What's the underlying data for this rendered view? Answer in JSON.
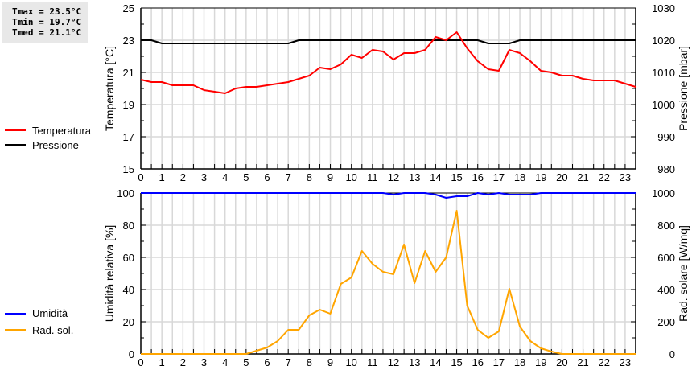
{
  "stats": {
    "tmax": "Tmax = 23.5°C",
    "tmin": "Tmin = 19.7°C",
    "tmed": "Tmed = 21.1°C"
  },
  "legend_top": [
    {
      "label": "Temperatura",
      "color": "#ff0000"
    },
    {
      "label": "Pressione",
      "color": "#000000"
    }
  ],
  "legend_bottom": [
    {
      "label": "Umidità",
      "color": "#0000ff"
    },
    {
      "label": "Rad. sol.",
      "color": "#ffa500"
    }
  ],
  "chart_data": [
    {
      "type": "line",
      "title": "",
      "xlabel": "",
      "x_ticks": [
        "0",
        "1",
        "2",
        "3",
        "4",
        "5",
        "6",
        "7",
        "8",
        "9",
        "10",
        "11",
        "12",
        "13",
        "14",
        "15",
        "16",
        "17",
        "18",
        "19",
        "20",
        "21",
        "22",
        "23"
      ],
      "ylabel_left": "Temperatura [°C]",
      "ylabel_right": "Pressione [mbar]",
      "ylim_left": [
        15,
        25
      ],
      "ylim_right": [
        980,
        1030
      ],
      "yticks_left": [
        "15",
        "17",
        "19",
        "21",
        "23",
        "25"
      ],
      "yticks_right": [
        "980",
        "990",
        "1000",
        "1010",
        "1020",
        "1030"
      ],
      "grid": true,
      "legend_position": "left",
      "x": [
        0,
        0.5,
        1,
        1.5,
        2,
        2.5,
        3,
        3.5,
        4,
        4.5,
        5,
        5.5,
        6,
        6.5,
        7,
        7.5,
        8,
        8.5,
        9,
        9.5,
        10,
        10.5,
        11,
        11.5,
        12,
        12.5,
        13,
        13.5,
        14,
        14.5,
        15,
        15.5,
        16,
        16.5,
        17,
        17.5,
        18,
        18.5,
        19,
        19.5,
        20,
        20.5,
        21,
        21.5,
        22,
        22.5,
        23,
        23.5
      ],
      "series": [
        {
          "name": "Temperatura",
          "axis": "left",
          "color": "#ff0000",
          "values": [
            20.55,
            20.4,
            20.4,
            20.2,
            20.2,
            20.2,
            19.9,
            19.8,
            19.7,
            20.0,
            20.1,
            20.1,
            20.2,
            20.3,
            20.4,
            20.6,
            20.8,
            21.3,
            21.2,
            21.5,
            22.1,
            21.9,
            22.4,
            22.3,
            21.8,
            22.2,
            22.2,
            22.4,
            23.2,
            23.0,
            23.5,
            22.5,
            21.7,
            21.2,
            21.1,
            22.4,
            22.2,
            21.7,
            21.1,
            21.0,
            20.8,
            20.8,
            20.6,
            20.5,
            20.5,
            20.5,
            20.3,
            20.1
          ]
        },
        {
          "name": "Pressione",
          "axis": "right",
          "color": "#000000",
          "values": [
            1020,
            1020,
            1019,
            1019,
            1019,
            1019,
            1019,
            1019,
            1019,
            1019,
            1019,
            1019,
            1019,
            1019,
            1019,
            1020,
            1020,
            1020,
            1020,
            1020,
            1020,
            1020,
            1020,
            1020,
            1020,
            1020,
            1020,
            1020,
            1020,
            1020,
            1020,
            1020,
            1020,
            1019,
            1019,
            1019,
            1020,
            1020,
            1020,
            1020,
            1020,
            1020,
            1020,
            1020,
            1020,
            1020,
            1020,
            1020
          ]
        }
      ]
    },
    {
      "type": "line",
      "title": "",
      "xlabel": "",
      "x_ticks": [
        "0",
        "1",
        "2",
        "3",
        "4",
        "5",
        "6",
        "7",
        "8",
        "9",
        "10",
        "11",
        "12",
        "13",
        "14",
        "15",
        "16",
        "17",
        "18",
        "19",
        "20",
        "21",
        "22",
        "23"
      ],
      "ylabel_left": "Umidità relativa [%]",
      "ylabel_right": "Rad. solare [W/mq]",
      "ylim_left": [
        0,
        100
      ],
      "ylim_right": [
        0,
        1000
      ],
      "yticks_left": [
        "0",
        "20",
        "40",
        "60",
        "80",
        "100"
      ],
      "yticks_right": [
        "0",
        "200",
        "400",
        "600",
        "800",
        "1000"
      ],
      "grid": true,
      "legend_position": "left",
      "x": [
        0,
        0.5,
        1,
        1.5,
        2,
        2.5,
        3,
        3.5,
        4,
        4.5,
        5,
        5.5,
        6,
        6.5,
        7,
        7.5,
        8,
        8.5,
        9,
        9.5,
        10,
        10.5,
        11,
        11.5,
        12,
        12.5,
        13,
        13.5,
        14,
        14.5,
        15,
        15.5,
        16,
        16.5,
        17,
        17.5,
        18,
        18.5,
        19,
        19.5,
        20,
        20.5,
        21,
        21.5,
        22,
        22.5,
        23,
        23.5
      ],
      "series": [
        {
          "name": "Umidità",
          "axis": "left",
          "color": "#0000ff",
          "values": [
            100,
            100,
            100,
            100,
            100,
            100,
            100,
            100,
            100,
            100,
            100,
            100,
            100,
            100,
            100,
            100,
            100,
            100,
            100,
            100,
            100,
            100,
            100,
            100,
            99,
            100,
            100,
            100,
            99,
            97,
            98,
            98,
            100,
            99,
            100,
            99,
            99,
            99,
            100,
            100,
            100,
            100,
            100,
            100,
            100,
            100,
            100,
            100
          ]
        },
        {
          "name": "Rad. sol.",
          "axis": "right",
          "color": "#ffa500",
          "values": [
            0,
            0,
            0,
            0,
            0,
            0,
            0,
            0,
            0,
            0,
            0,
            20,
            40,
            80,
            150,
            150,
            240,
            275,
            250,
            435,
            475,
            640,
            560,
            510,
            495,
            680,
            440,
            640,
            510,
            600,
            890,
            300,
            150,
            100,
            140,
            405,
            170,
            80,
            35,
            15,
            0,
            0,
            0,
            0,
            0,
            0,
            0,
            0
          ]
        }
      ]
    }
  ]
}
